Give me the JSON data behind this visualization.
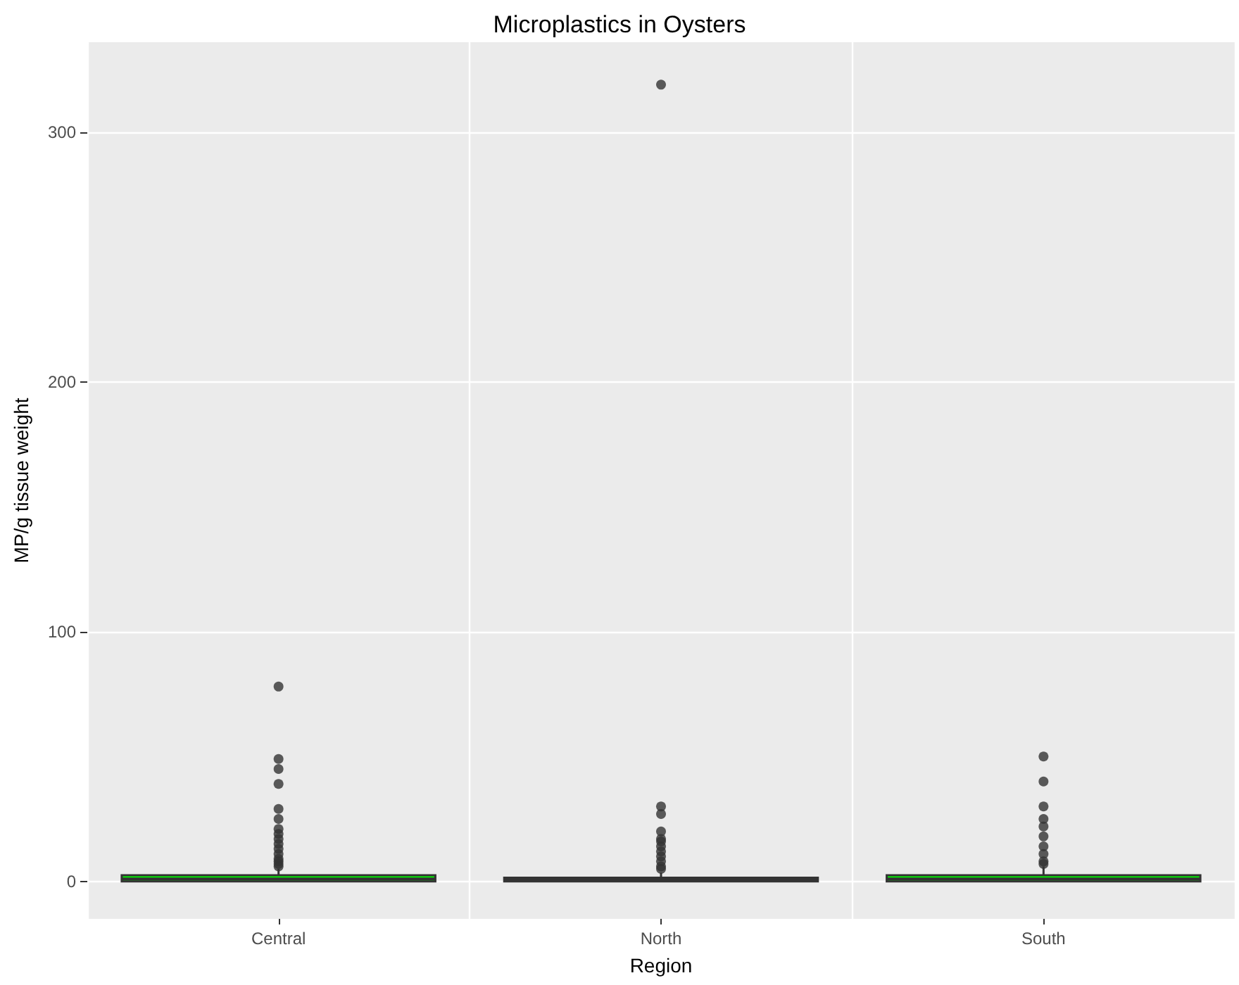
{
  "chart_data": {
    "type": "box",
    "title": "Microplastics in Oysters",
    "xlabel": "Region",
    "ylabel": "MP/g tissue weight",
    "categories": [
      "Central",
      "North",
      "South"
    ],
    "colors": [
      "#00ff00",
      "#666666",
      "#00ff00"
    ],
    "boxes": [
      {
        "low": 0,
        "q1": 0,
        "median": 1,
        "q3": 2.5,
        "high": 5,
        "outliers": [
          78,
          49,
          45,
          39,
          29,
          25,
          21,
          19,
          17,
          15,
          13,
          11,
          9,
          8,
          7,
          6
        ]
      },
      {
        "low": 0,
        "q1": 0,
        "median": 0.5,
        "q3": 1.5,
        "high": 3.5,
        "outliers": [
          319,
          30,
          27,
          20,
          17,
          16,
          14,
          12,
          10,
          8,
          6,
          5
        ]
      },
      {
        "low": 0,
        "q1": 0,
        "median": 1,
        "q3": 2.5,
        "high": 6,
        "outliers": [
          50,
          40,
          30,
          25,
          22,
          18,
          14,
          11,
          8,
          7
        ]
      }
    ],
    "marker": "circle",
    "ylim": [
      -15,
      336
    ],
    "yticks": [
      0,
      100,
      200,
      300
    ],
    "grid": true
  }
}
